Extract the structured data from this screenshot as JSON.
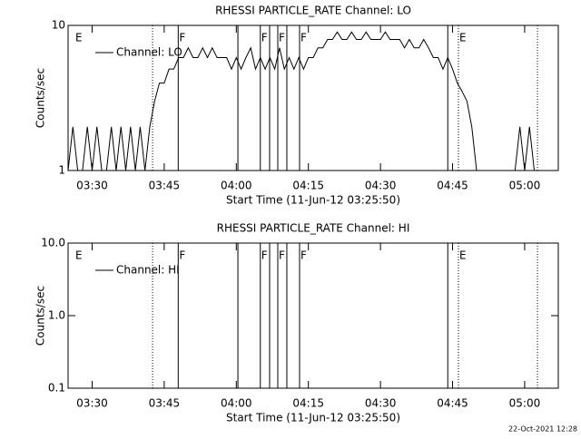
{
  "chart_data": [
    {
      "type": "line",
      "title": "RHESSI PARTICLE_RATE Channel: LO",
      "ylabel": "Counts/sec",
      "xlabel": "Start Time (11-Jun-12 03:25:50)",
      "log_y": true,
      "ylim": [
        1,
        10
      ],
      "yticks": [
        1,
        10
      ],
      "xlim": [
        "03:25",
        "05:07"
      ],
      "xticks": [
        "03:30",
        "03:45",
        "04:00",
        "04:15",
        "04:30",
        "04:45",
        "05:00"
      ],
      "x": [
        "03:25",
        "03:26",
        "03:27",
        "03:28",
        "03:29",
        "03:30",
        "03:31",
        "03:32",
        "03:33",
        "03:34",
        "03:35",
        "03:36",
        "03:37",
        "03:38",
        "03:39",
        "03:40",
        "03:41",
        "03:42",
        "03:43",
        "03:44",
        "03:45",
        "03:46",
        "03:47",
        "03:48",
        "03:49",
        "03:50",
        "03:51",
        "03:52",
        "03:53",
        "03:54",
        "03:55",
        "03:56",
        "03:57",
        "03:58",
        "03:59",
        "04:00",
        "04:01",
        "04:02",
        "04:03",
        "04:04",
        "04:05",
        "04:06",
        "04:07",
        "04:08",
        "04:09",
        "04:10",
        "04:11",
        "04:12",
        "04:13",
        "04:14",
        "04:15",
        "04:16",
        "04:17",
        "04:18",
        "04:19",
        "04:20",
        "04:21",
        "04:22",
        "04:23",
        "04:24",
        "04:25",
        "04:26",
        "04:27",
        "04:28",
        "04:29",
        "04:30",
        "04:31",
        "04:32",
        "04:33",
        "04:34",
        "04:35",
        "04:36",
        "04:37",
        "04:38",
        "04:39",
        "04:40",
        "04:41",
        "04:42",
        "04:43",
        "04:44",
        "04:45",
        "04:46",
        "04:47",
        "04:48",
        "04:49",
        "04:50",
        "04:51",
        "04:52",
        "04:53",
        "04:54",
        "04:55",
        "04:56",
        "04:57",
        "04:58",
        "04:59",
        "05:00",
        "05:01",
        "05:02"
      ],
      "series": [
        {
          "name": "Channel: LO",
          "color": "#000000",
          "values": [
            1,
            2,
            1,
            1,
            2,
            1,
            2,
            1,
            1,
            2,
            1,
            2,
            1,
            2,
            1,
            2,
            1,
            2,
            3,
            4,
            4,
            5,
            5,
            6,
            6,
            7,
            6,
            6,
            7,
            6,
            7,
            6,
            6,
            6,
            5,
            6,
            5,
            6,
            7,
            5,
            6,
            5,
            6,
            5,
            7,
            5,
            6,
            5,
            6,
            5,
            6,
            6,
            7,
            7,
            8,
            8,
            9,
            8,
            8,
            9,
            8,
            8,
            9,
            8,
            8,
            8,
            9,
            8,
            8,
            8,
            7,
            8,
            7,
            7,
            8,
            7,
            6,
            6,
            5,
            6,
            5,
            4,
            3.5,
            3,
            2,
            1,
            1,
            1,
            1,
            1,
            1,
            1,
            1,
            1,
            2,
            1,
            2,
            1
          ]
        }
      ],
      "markers": [
        {
          "x": "03:42:35",
          "style": "dotted"
        },
        {
          "x": "03:47:55",
          "style": "solid"
        },
        {
          "x": "04:00:20",
          "style": "solid"
        },
        {
          "x": "04:05:00",
          "style": "solid"
        },
        {
          "x": "04:06:56",
          "style": "solid"
        },
        {
          "x": "04:08:38",
          "style": "solid"
        },
        {
          "x": "04:10:31",
          "style": "solid"
        },
        {
          "x": "04:13:10",
          "style": "solid"
        },
        {
          "x": "04:44:00",
          "style": "solid"
        },
        {
          "x": "04:46:13",
          "style": "dotted"
        },
        {
          "x": "05:02:40",
          "style": "dotted"
        }
      ],
      "marker_labels": [
        {
          "x": "03:26:20",
          "label": "E"
        },
        {
          "x": "03:47:55",
          "label": "F"
        },
        {
          "x": "04:05:00",
          "label": "F"
        },
        {
          "x": "04:08:38",
          "label": "F"
        },
        {
          "x": "04:13:10",
          "label": "F"
        },
        {
          "x": "04:46:13",
          "label": "E"
        }
      ]
    },
    {
      "type": "line",
      "title": "RHESSI PARTICLE_RATE Channel: HI",
      "ylabel": "Counts/sec",
      "xlabel": "Start Time (11-Jun-12 03:25:50)",
      "log_y": true,
      "ylim": [
        0.1,
        10
      ],
      "yticks": [
        0.1,
        {
          "value": 1,
          "label": "1.0"
        },
        {
          "value": 10,
          "label": "10.0"
        }
      ],
      "xlim": [
        "03:25",
        "05:07"
      ],
      "xticks": [
        "03:30",
        "03:45",
        "04:00",
        "04:15",
        "04:30",
        "04:45",
        "05:00"
      ],
      "x": [],
      "series": [
        {
          "name": "Channel: HI",
          "color": "#000000",
          "values": []
        }
      ],
      "markers": [
        {
          "x": "03:42:35",
          "style": "dotted"
        },
        {
          "x": "03:47:55",
          "style": "solid"
        },
        {
          "x": "04:00:20",
          "style": "solid"
        },
        {
          "x": "04:05:00",
          "style": "solid"
        },
        {
          "x": "04:06:56",
          "style": "solid"
        },
        {
          "x": "04:08:38",
          "style": "solid"
        },
        {
          "x": "04:10:31",
          "style": "solid"
        },
        {
          "x": "04:13:10",
          "style": "solid"
        },
        {
          "x": "04:44:00",
          "style": "solid"
        },
        {
          "x": "04:46:13",
          "style": "dotted"
        },
        {
          "x": "05:02:40",
          "style": "dotted"
        }
      ],
      "marker_labels": [
        {
          "x": "03:26:20",
          "label": "E"
        },
        {
          "x": "03:47:55",
          "label": "F"
        },
        {
          "x": "04:05:00",
          "label": "F"
        },
        {
          "x": "04:08:38",
          "label": "F"
        },
        {
          "x": "04:13:10",
          "label": "F"
        },
        {
          "x": "04:46:13",
          "label": "E"
        }
      ]
    }
  ],
  "footer": "22-Oct-2021 12:28"
}
